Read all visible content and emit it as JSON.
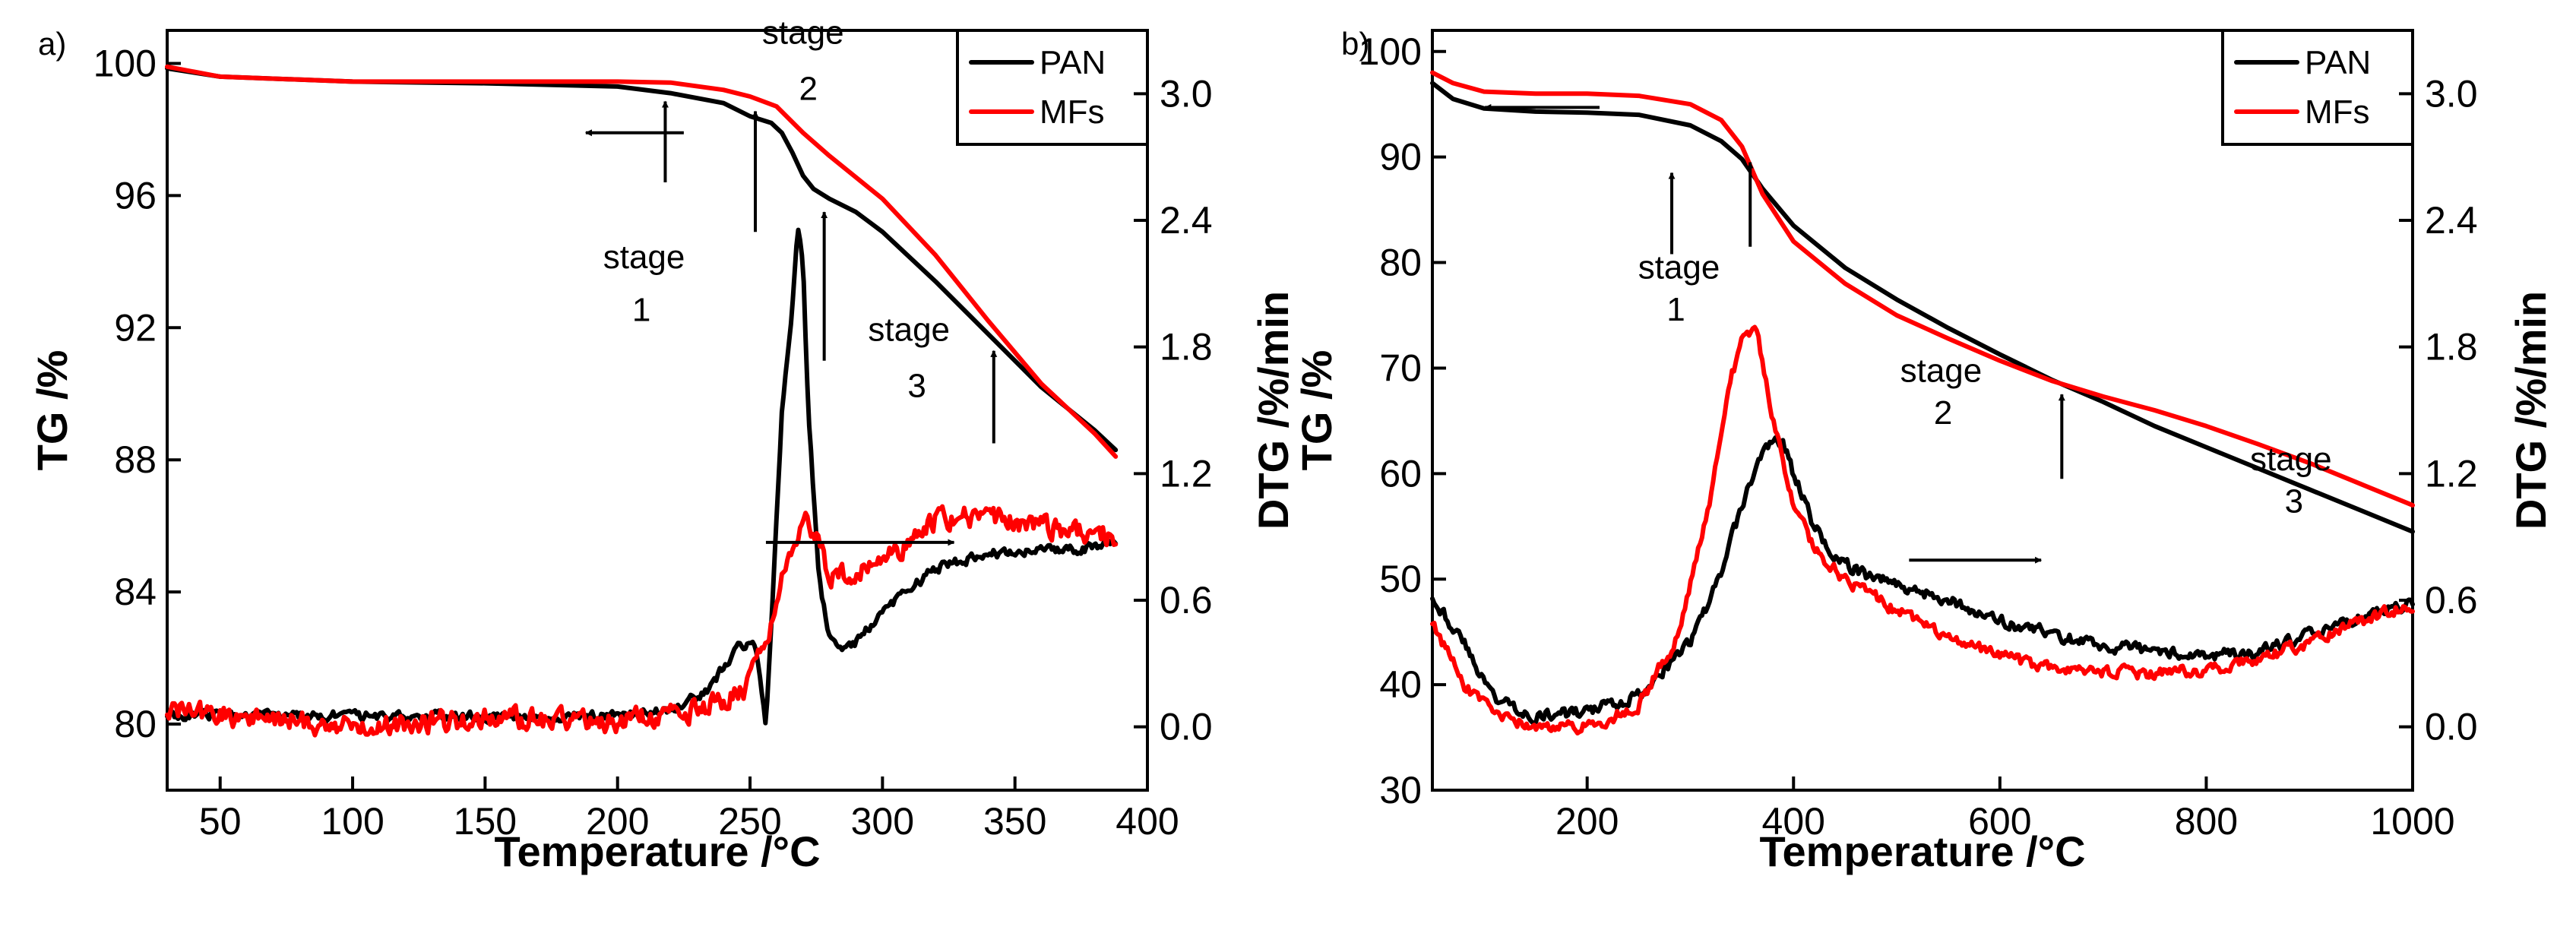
{
  "chart_data": [
    {
      "type": "line",
      "panel_label": "a)",
      "xlabel": "Temperature /°C",
      "ylabel": "TG /%",
      "y2label": "DTG /%/min",
      "xlim": [
        30,
        400
      ],
      "ylim": [
        78,
        101
      ],
      "y2lim": [
        -0.3,
        3.3
      ],
      "xticks": [
        50,
        100,
        150,
        200,
        250,
        300,
        350,
        400
      ],
      "yticks": [
        80,
        84,
        88,
        92,
        96,
        100
      ],
      "y2ticks": [
        0.0,
        0.6,
        1.2,
        1.8,
        2.4,
        3.0
      ],
      "xtick_labels": [
        "50",
        "100",
        "150",
        "200",
        "250",
        "300",
        "350",
        "400"
      ],
      "ytick_labels": [
        "80",
        "84",
        "88",
        "92",
        "96",
        "100"
      ],
      "y2tick_labels": [
        "0.0",
        "0.6",
        "1.2",
        "1.8",
        "2.4",
        "3.0"
      ],
      "legend": {
        "position": "top-right",
        "entries": [
          "PAN",
          "MFs"
        ]
      },
      "colors": {
        "PAN": "#000000",
        "MFs": "#ff0000"
      },
      "series": [
        {
          "name": "PAN",
          "kind": "TG",
          "axis": "left",
          "x": [
            30,
            50,
            100,
            150,
            200,
            220,
            240,
            250,
            258,
            262,
            266,
            270,
            274,
            280,
            290,
            300,
            320,
            340,
            360,
            380,
            388
          ],
          "y": [
            99.85,
            99.6,
            99.45,
            99.4,
            99.3,
            99.1,
            98.8,
            98.4,
            98.2,
            97.9,
            97.3,
            96.6,
            96.2,
            95.9,
            95.5,
            94.9,
            93.4,
            91.8,
            90.2,
            88.9,
            88.3
          ]
        },
        {
          "name": "MFs",
          "kind": "TG",
          "axis": "left",
          "x": [
            30,
            50,
            100,
            150,
            200,
            220,
            240,
            250,
            260,
            270,
            280,
            300,
            320,
            340,
            360,
            380,
            388
          ],
          "y": [
            99.9,
            99.6,
            99.45,
            99.45,
            99.45,
            99.42,
            99.2,
            99.0,
            98.7,
            97.9,
            97.2,
            95.9,
            94.2,
            92.2,
            90.3,
            88.8,
            88.1
          ]
        },
        {
          "name": "PAN",
          "kind": "DTG",
          "axis": "right",
          "noise": 0.02,
          "x": [
            30,
            100,
            150,
            200,
            220,
            235,
            245,
            252,
            256,
            258,
            262,
            266,
            268,
            270,
            272,
            276,
            280,
            285,
            290,
            300,
            320,
            340,
            360,
            380,
            388
          ],
          "y": [
            0.06,
            0.05,
            0.05,
            0.05,
            0.08,
            0.18,
            0.38,
            0.4,
            0.0,
            0.5,
            1.5,
            2.0,
            2.35,
            2.2,
            1.5,
            0.7,
            0.42,
            0.35,
            0.4,
            0.55,
            0.75,
            0.82,
            0.83,
            0.85,
            0.86
          ]
        },
        {
          "name": "MFs",
          "kind": "DTG",
          "axis": "right",
          "noise": 0.045,
          "x": [
            30,
            100,
            150,
            200,
            220,
            240,
            250,
            260,
            265,
            270,
            275,
            280,
            290,
            300,
            310,
            320,
            340,
            360,
            380,
            388
          ],
          "y": [
            0.08,
            0.0,
            0.04,
            0.03,
            0.05,
            0.12,
            0.2,
            0.55,
            0.85,
            1.0,
            0.9,
            0.7,
            0.72,
            0.78,
            0.88,
            0.98,
            1.0,
            0.95,
            0.92,
            0.9
          ]
        }
      ],
      "annotations": [
        {
          "text": "stage",
          "x": 210,
          "y": 93.8
        },
        {
          "text": "1",
          "x": 209,
          "y": 92.2
        },
        {
          "text": "stage",
          "x": 270,
          "y": 100.6
        },
        {
          "text": "2",
          "x": 272,
          "y": 98.9
        },
        {
          "text": "stage",
          "x": 310,
          "y": 91.6
        },
        {
          "text": "3",
          "x": 313,
          "y": 89.9
        }
      ],
      "arrows": [
        {
          "dir": "left",
          "x1": 225,
          "x2": 188,
          "y": 97.9
        },
        {
          "dir": "right",
          "x1": 256,
          "x2": 327,
          "y": 85.5
        },
        {
          "dir": "up",
          "x": 218,
          "y1": 96.4,
          "y2": 98.85
        },
        {
          "dir": "up",
          "x": 252,
          "y1": 94.9,
          "y2": 98.55
        },
        {
          "dir": "up",
          "x": 278,
          "y1": 91.0,
          "y2": 95.5
        },
        {
          "dir": "up",
          "x": 342,
          "y1": 88.5,
          "y2": 91.3
        }
      ]
    },
    {
      "type": "line",
      "panel_label": "b)",
      "xlabel": "Temperature /°C",
      "ylabel": "TG /%",
      "y2label": "DTG /%/min",
      "xlim": [
        50,
        1000
      ],
      "ylim": [
        30,
        102
      ],
      "y2lim": [
        -0.3,
        3.3
      ],
      "xticks": [
        200,
        400,
        600,
        800,
        1000
      ],
      "yticks": [
        30,
        40,
        50,
        60,
        70,
        80,
        90,
        100
      ],
      "y2ticks": [
        0.0,
        0.6,
        1.2,
        1.8,
        2.4,
        3.0
      ],
      "xtick_labels": [
        "200",
        "400",
        "600",
        "800",
        "1000"
      ],
      "ytick_labels": [
        "30",
        "40",
        "50",
        "60",
        "70",
        "80",
        "90",
        "100"
      ],
      "y2tick_labels": [
        "0.0",
        "0.6",
        "1.2",
        "1.8",
        "2.4",
        "3.0"
      ],
      "legend": {
        "position": "top-right",
        "entries": [
          "PAN",
          "MFs"
        ]
      },
      "colors": {
        "PAN": "#000000",
        "MFs": "#ff0000"
      },
      "series": [
        {
          "name": "PAN",
          "kind": "TG",
          "axis": "left",
          "x": [
            50,
            70,
            100,
            150,
            200,
            250,
            300,
            330,
            350,
            370,
            400,
            450,
            500,
            550,
            600,
            650,
            700,
            750,
            800,
            850,
            900,
            950,
            1000
          ],
          "y": [
            97.0,
            95.5,
            94.6,
            94.3,
            94.2,
            94.0,
            93.0,
            91.5,
            89.8,
            87.0,
            83.5,
            79.5,
            76.5,
            73.8,
            71.3,
            68.9,
            66.8,
            64.5,
            62.5,
            60.5,
            58.5,
            56.5,
            54.5
          ]
        },
        {
          "name": "MFs",
          "kind": "TG",
          "axis": "left",
          "x": [
            50,
            70,
            100,
            150,
            200,
            250,
            300,
            330,
            350,
            370,
            400,
            450,
            500,
            550,
            600,
            650,
            700,
            750,
            800,
            850,
            900,
            950,
            1000
          ],
          "y": [
            98.0,
            97.0,
            96.2,
            96.0,
            96.0,
            95.8,
            95.0,
            93.5,
            91.0,
            86.5,
            82.0,
            78.0,
            75.0,
            72.8,
            70.7,
            68.8,
            67.3,
            66.0,
            64.5,
            62.8,
            61.0,
            59.0,
            57.0
          ]
        },
        {
          "name": "PAN",
          "kind": "DTG",
          "axis": "right",
          "noise": 0.025,
          "x": [
            50,
            80,
            110,
            150,
            200,
            250,
            300,
            330,
            350,
            370,
            380,
            390,
            400,
            420,
            440,
            470,
            500,
            550,
            600,
            650,
            700,
            750,
            800,
            850,
            900,
            950,
            1000
          ],
          "y": [
            0.62,
            0.4,
            0.14,
            0.05,
            0.07,
            0.15,
            0.4,
            0.72,
            1.05,
            1.3,
            1.36,
            1.35,
            1.2,
            0.95,
            0.8,
            0.72,
            0.68,
            0.6,
            0.5,
            0.44,
            0.38,
            0.36,
            0.34,
            0.35,
            0.43,
            0.52,
            0.58
          ]
        },
        {
          "name": "MFs",
          "kind": "DTG",
          "axis": "right",
          "noise": 0.025,
          "x": [
            50,
            80,
            110,
            150,
            200,
            250,
            290,
            320,
            340,
            355,
            365,
            380,
            400,
            420,
            450,
            500,
            550,
            600,
            650,
            700,
            750,
            800,
            850,
            900,
            950,
            1000
          ],
          "y": [
            0.5,
            0.2,
            0.05,
            0.0,
            0.0,
            0.1,
            0.45,
            1.1,
            1.65,
            1.9,
            1.85,
            1.45,
            1.05,
            0.85,
            0.7,
            0.55,
            0.42,
            0.33,
            0.28,
            0.26,
            0.25,
            0.27,
            0.32,
            0.4,
            0.5,
            0.58
          ]
        }
      ],
      "annotations": [
        {
          "text": "stage",
          "x": 289,
          "y": 78.5
        },
        {
          "text": "1",
          "x": 286,
          "y": 74.5
        },
        {
          "text": "stage",
          "x": 543,
          "y": 68.7
        },
        {
          "text": "2",
          "x": 545,
          "y": 64.7
        },
        {
          "text": "stage",
          "x": 882,
          "y": 60.3
        },
        {
          "text": "3",
          "x": 885,
          "y": 56.3
        }
      ],
      "arrows": [
        {
          "dir": "left",
          "x1": 212,
          "x2": 101,
          "y": 94.7
        },
        {
          "dir": "right",
          "x1": 512,
          "x2": 640,
          "y": 51.8
        },
        {
          "dir": "up",
          "x": 282,
          "y1": 80.8,
          "y2": 88.5
        },
        {
          "dir": "up",
          "x": 358,
          "y1": 81.5,
          "y2": 89.5
        },
        {
          "dir": "up",
          "x": 660,
          "y1": 59.5,
          "y2": 67.5
        }
      ]
    }
  ]
}
